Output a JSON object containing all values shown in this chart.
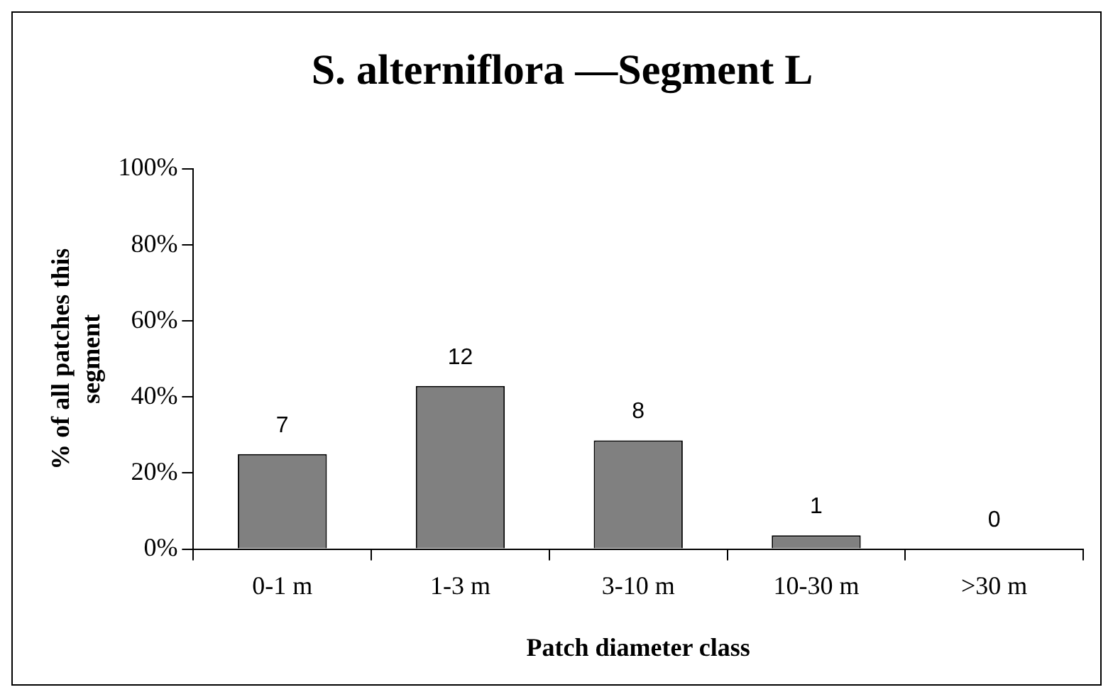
{
  "chart_data": {
    "type": "bar",
    "title": "S. alterniflora —Segment L",
    "xlabel": "Patch diameter class",
    "ylabel": "% of all patches this segment",
    "categories": [
      "0-1 m",
      "1-3 m",
      "3-10 m",
      "10-30 m",
      ">30 m"
    ],
    "values": [
      25,
      42.9,
      28.6,
      3.6,
      0
    ],
    "annotations": [
      {
        "text": "7",
        "x": "0-1 m",
        "y": 25
      },
      {
        "text": "12",
        "x": "1-3 m",
        "y": 42.9
      },
      {
        "text": "8",
        "x": "3-10 m",
        "y": 28.6
      },
      {
        "text": "1",
        "x": "10-30 m",
        "y": 3.6
      },
      {
        "text": "0",
        "x": ">30 m",
        "y": 0
      }
    ],
    "color": "#808080",
    "ylim": [
      0,
      100
    ],
    "yticks": [
      {
        "value": 0,
        "label": "0%"
      },
      {
        "value": 20,
        "label": "20%"
      },
      {
        "value": 40,
        "label": "40%"
      },
      {
        "value": 60,
        "label": "60%"
      },
      {
        "value": 80,
        "label": "80%"
      },
      {
        "value": 100,
        "label": "100%"
      }
    ],
    "grid": false,
    "legend": false
  }
}
